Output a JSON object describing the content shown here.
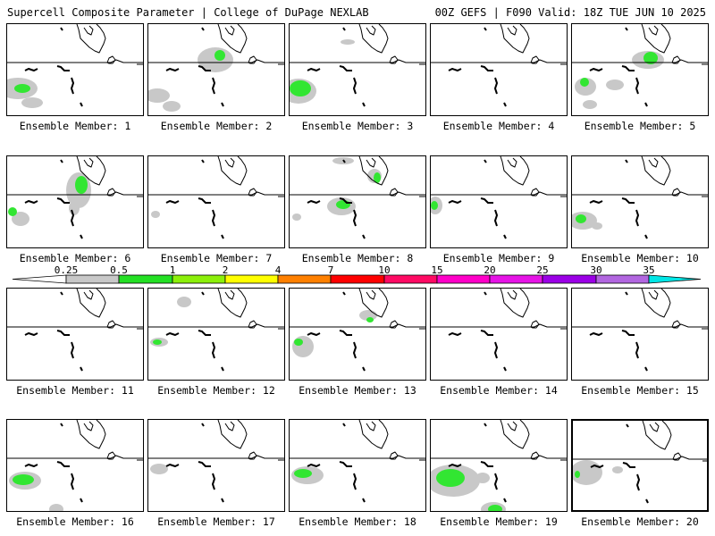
{
  "header": {
    "left": "Supercell Composite Parameter | College of DuPage NEXLAB",
    "right": "00Z GEFS | F090 Valid: 18Z TUE JUN 10 2025"
  },
  "label_prefix": "Ensemble Member:",
  "members": [
    {
      "label": "Ensemble Member: 1",
      "blobs": [
        [
          12,
          72,
          22,
          12,
          "g"
        ],
        [
          28,
          88,
          12,
          6,
          "g"
        ],
        [
          17,
          72,
          9,
          5,
          "l"
        ]
      ]
    },
    {
      "label": "Ensemble Member: 2",
      "blobs": [
        [
          75,
          40,
          20,
          14,
          "g"
        ],
        [
          80,
          35,
          6,
          6,
          "l"
        ],
        [
          10,
          80,
          14,
          8,
          "g"
        ],
        [
          26,
          92,
          10,
          6,
          "g"
        ]
      ]
    },
    {
      "label": "Ensemble Member: 3",
      "blobs": [
        [
          10,
          75,
          20,
          14,
          "g"
        ],
        [
          12,
          72,
          12,
          9,
          "l"
        ],
        [
          65,
          20,
          8,
          3,
          "g"
        ]
      ]
    },
    {
      "label": "Ensemble Member: 4",
      "blobs": [
        [
          58,
          108,
          6,
          6,
          "g"
        ]
      ]
    },
    {
      "label": "Ensemble Member: 5",
      "blobs": [
        [
          85,
          40,
          18,
          10,
          "g"
        ],
        [
          88,
          38,
          8,
          7,
          "l"
        ],
        [
          15,
          70,
          12,
          10,
          "g"
        ],
        [
          14,
          65,
          5,
          5,
          "l"
        ],
        [
          48,
          68,
          10,
          6,
          "g"
        ],
        [
          20,
          90,
          8,
          5,
          "g"
        ]
      ]
    },
    {
      "label": "Ensemble Member: 6",
      "blobs": [
        [
          80,
          38,
          14,
          20,
          "g"
        ],
        [
          83,
          32,
          7,
          10,
          "l"
        ],
        [
          15,
          70,
          10,
          8,
          "g"
        ],
        [
          6,
          62,
          5,
          5,
          "l"
        ],
        [
          75,
          58,
          6,
          8,
          "g"
        ]
      ]
    },
    {
      "label": "Ensemble Member: 7",
      "blobs": [
        [
          8,
          65,
          5,
          4,
          "g"
        ]
      ]
    },
    {
      "label": "Ensemble Member: 8",
      "blobs": [
        [
          58,
          56,
          16,
          10,
          "g"
        ],
        [
          60,
          54,
          8,
          5,
          "l"
        ],
        [
          95,
          22,
          8,
          8,
          "g"
        ],
        [
          98,
          24,
          4,
          6,
          "l"
        ],
        [
          60,
          5,
          12,
          4,
          "g"
        ],
        [
          8,
          68,
          5,
          4,
          "g"
        ]
      ]
    },
    {
      "label": "Ensemble Member: 9",
      "blobs": [
        [
          5,
          55,
          8,
          10,
          "g"
        ],
        [
          4,
          55,
          4,
          5,
          "l"
        ]
      ]
    },
    {
      "label": "Ensemble Member: 10",
      "blobs": [
        [
          12,
          72,
          16,
          10,
          "g"
        ],
        [
          10,
          70,
          6,
          5,
          "l"
        ],
        [
          28,
          78,
          6,
          4,
          "g"
        ]
      ]
    },
    {
      "label": "Ensemble Member: 11",
      "blobs": []
    },
    {
      "label": "Ensemble Member: 12",
      "blobs": [
        [
          12,
          60,
          10,
          5,
          "g"
        ],
        [
          10,
          60,
          5,
          3,
          "l"
        ],
        [
          40,
          15,
          8,
          6,
          "g"
        ]
      ]
    },
    {
      "label": "Ensemble Member: 13",
      "blobs": [
        [
          15,
          65,
          12,
          12,
          "g"
        ],
        [
          10,
          60,
          5,
          4,
          "l"
        ],
        [
          88,
          30,
          10,
          6,
          "g"
        ],
        [
          90,
          35,
          4,
          3,
          "l"
        ]
      ]
    },
    {
      "label": "Ensemble Member: 14",
      "blobs": []
    },
    {
      "label": "Ensemble Member: 15",
      "blobs": []
    },
    {
      "label": "Ensemble Member: 16",
      "blobs": [
        [
          20,
          68,
          18,
          10,
          "g"
        ],
        [
          18,
          67,
          12,
          6,
          "l"
        ],
        [
          55,
          100,
          8,
          6,
          "g"
        ]
      ]
    },
    {
      "label": "Ensemble Member: 17",
      "blobs": [
        [
          12,
          55,
          10,
          6,
          "g"
        ]
      ]
    },
    {
      "label": "Ensemble Member: 18",
      "blobs": [
        [
          20,
          62,
          18,
          10,
          "g"
        ],
        [
          15,
          60,
          10,
          5,
          "l"
        ]
      ]
    },
    {
      "label": "Ensemble Member: 19",
      "blobs": [
        [
          25,
          68,
          30,
          18,
          "g"
        ],
        [
          22,
          65,
          16,
          10,
          "l"
        ],
        [
          70,
          100,
          14,
          8,
          "g"
        ],
        [
          72,
          100,
          8,
          5,
          "l"
        ],
        [
          58,
          65,
          8,
          6,
          "g"
        ]
      ]
    },
    {
      "label": "Ensemble Member: 20",
      "blobs": [
        [
          15,
          58,
          18,
          14,
          "g"
        ],
        [
          50,
          55,
          6,
          4,
          "g"
        ],
        [
          5,
          60,
          3,
          4,
          "l"
        ]
      ]
    }
  ],
  "colorbar": {
    "labels": [
      "0.25",
      "0.5",
      "1",
      "2",
      "4",
      "7",
      "10",
      "15",
      "20",
      "25",
      "30",
      "35"
    ],
    "colors": [
      "#ffffff",
      "#c8c8c8",
      "#24e024",
      "#8cf00a",
      "#ffff00",
      "#ff8000",
      "#ff0000",
      "#ff0a64",
      "#ff00c8",
      "#e614e6",
      "#9b00e6",
      "#b266e0",
      "#00e6e6"
    ]
  },
  "style": {
    "blob_gray": "#c8c8c8",
    "blob_green": "#32e632"
  }
}
